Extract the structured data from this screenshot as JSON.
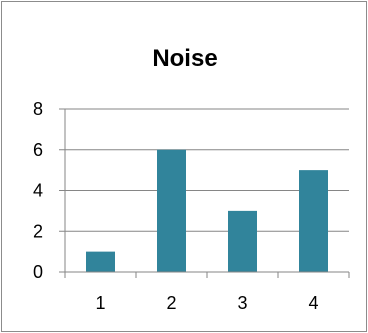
{
  "chart_data": {
    "type": "bar",
    "title": "Noise",
    "categories": [
      "1",
      "2",
      "3",
      "4"
    ],
    "values": [
      1,
      6,
      3,
      5
    ],
    "xlabel": "",
    "ylabel": "",
    "ylim": [
      0,
      8
    ],
    "yticks": [
      "0",
      "2",
      "4",
      "6",
      "8"
    ],
    "grid": true,
    "legend": "none",
    "bar_color": "#31849b",
    "grid_color": "#868686"
  }
}
